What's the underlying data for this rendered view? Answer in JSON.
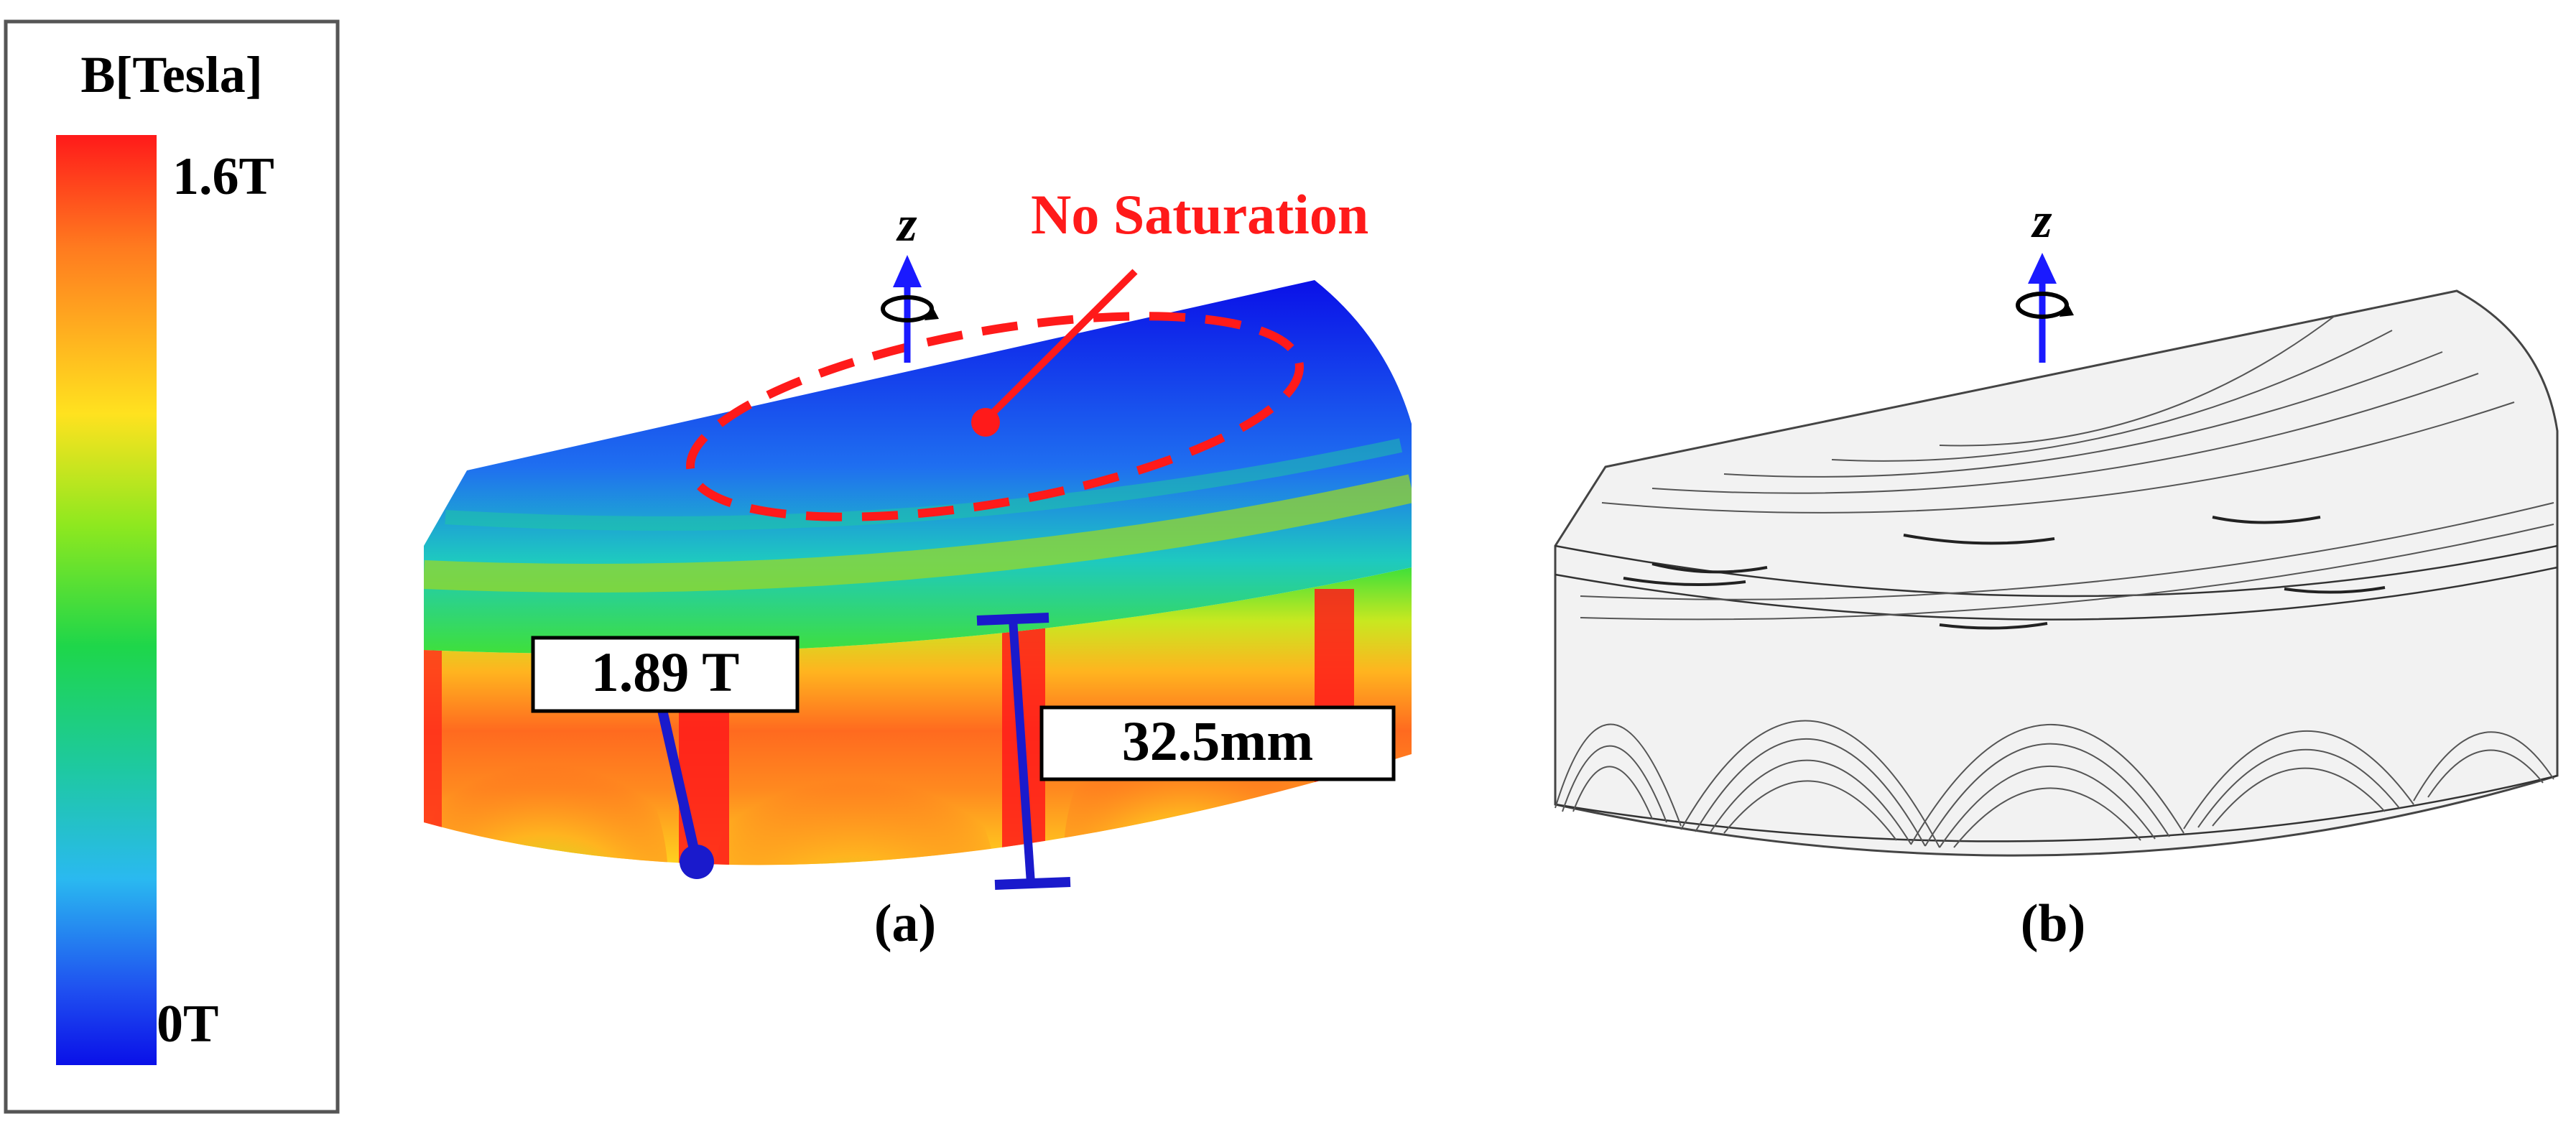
{
  "legend": {
    "title": "B[Tesla]",
    "max_label": "1.6T",
    "min_label": "0T",
    "gradient_colors": [
      "#ff1a1a",
      "#ff7a1f",
      "#ffe21f",
      "#8ee81f",
      "#1ed64a",
      "#1ec9a0",
      "#2ab9f0",
      "#1f4ff0",
      "#0a10e8"
    ]
  },
  "panel_a": {
    "caption": "(a)",
    "axis_label": "z",
    "annotation_no_saturation": "No Saturation",
    "annotation_flux": "1.89 T",
    "annotation_height": "32.5mm",
    "colors": {
      "annotation": "#ff1a1a",
      "axis": "#1a1aff",
      "marker": "#1a1acc"
    }
  },
  "panel_b": {
    "caption": "(b)",
    "axis_label": "z"
  }
}
